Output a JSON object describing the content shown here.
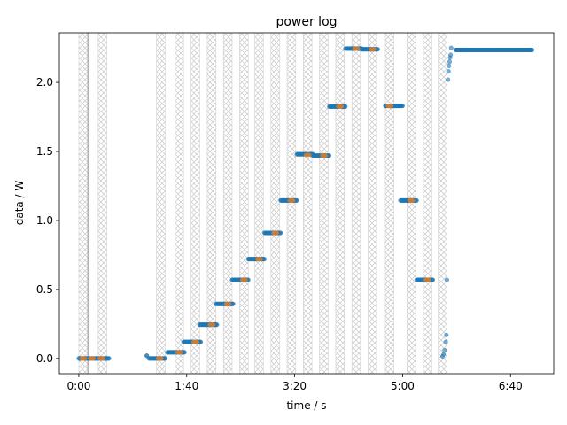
{
  "chart_data": {
    "type": "scatter",
    "title": "power log",
    "xlabel": "time / s",
    "ylabel": "data / W",
    "xlim": [
      -18,
      440
    ],
    "ylim": [
      -0.11,
      2.36
    ],
    "x_ticks": [
      {
        "value": 0,
        "label": "0:00"
      },
      {
        "value": 100,
        "label": "1:40"
      },
      {
        "value": 200,
        "label": "3:20"
      },
      {
        "value": 300,
        "label": "5:00"
      },
      {
        "value": 400,
        "label": "6:40"
      }
    ],
    "y_ticks": [
      {
        "value": 0.0,
        "label": "0.0"
      },
      {
        "value": 0.5,
        "label": "0.5"
      },
      {
        "value": 1.0,
        "label": "1.0"
      },
      {
        "value": 1.5,
        "label": "1.5"
      },
      {
        "value": 2.0,
        "label": "2.0"
      }
    ],
    "grid": false,
    "colors": {
      "measured": "#1f77b4",
      "average": "#ff7f0e",
      "hatch": "#c8c8c8"
    },
    "shaded_intervals": [
      [
        0,
        8
      ],
      [
        18,
        26
      ],
      [
        72,
        80
      ],
      [
        89,
        97
      ],
      [
        104,
        112
      ],
      [
        119,
        127
      ],
      [
        134,
        142
      ],
      [
        149,
        157
      ],
      [
        163,
        171
      ],
      [
        178,
        186
      ],
      [
        193,
        201
      ],
      [
        208,
        216
      ],
      [
        223,
        231
      ],
      [
        238,
        246
      ],
      [
        253,
        261
      ],
      [
        268,
        276
      ],
      [
        284,
        292
      ],
      [
        304,
        312
      ],
      [
        319,
        327
      ],
      [
        333,
        341
      ]
    ],
    "vertical_lines": [
      8.5
    ],
    "steps": [
      {
        "x0": 0,
        "x1": 28,
        "y": 0.0
      },
      {
        "x0": 63,
        "x1": 63,
        "y": 0.02
      },
      {
        "x0": 65,
        "x1": 80,
        "y": 0.0
      },
      {
        "x0": 82,
        "x1": 98,
        "y": 0.045
      },
      {
        "x0": 97,
        "x1": 113,
        "y": 0.12
      },
      {
        "x0": 112,
        "x1": 128,
        "y": 0.245
      },
      {
        "x0": 127,
        "x1": 143,
        "y": 0.395
      },
      {
        "x0": 142,
        "x1": 157,
        "y": 0.57
      },
      {
        "x0": 157,
        "x1": 172,
        "y": 0.72
      },
      {
        "x0": 172,
        "x1": 187,
        "y": 0.91
      },
      {
        "x0": 187,
        "x1": 202,
        "y": 1.145
      },
      {
        "x0": 202,
        "x1": 217,
        "y": 1.48
      },
      {
        "x0": 217,
        "x1": 232,
        "y": 1.47
      },
      {
        "x0": 232,
        "x1": 247,
        "y": 1.825
      },
      {
        "x0": 247,
        "x1": 262,
        "y": 2.245
      },
      {
        "x0": 262,
        "x1": 277,
        "y": 2.24
      },
      {
        "x0": 284,
        "x1": 300,
        "y": 1.83
      },
      {
        "x0": 298,
        "x1": 313,
        "y": 1.145
      },
      {
        "x0": 313,
        "x1": 328,
        "y": 0.57
      },
      {
        "x0": 349,
        "x1": 420,
        "y": 2.235
      }
    ],
    "averages": [
      {
        "x": 4,
        "y": 0.0
      },
      {
        "x": 12,
        "y": 0.0
      },
      {
        "x": 21,
        "y": 0.0
      },
      {
        "x": 75,
        "y": 0.0
      },
      {
        "x": 93,
        "y": 0.045
      },
      {
        "x": 108,
        "y": 0.12
      },
      {
        "x": 123,
        "y": 0.245
      },
      {
        "x": 138,
        "y": 0.395
      },
      {
        "x": 153,
        "y": 0.57
      },
      {
        "x": 167,
        "y": 0.72
      },
      {
        "x": 182,
        "y": 0.91
      },
      {
        "x": 197,
        "y": 1.145
      },
      {
        "x": 212,
        "y": 1.475
      },
      {
        "x": 227,
        "y": 1.47
      },
      {
        "x": 242,
        "y": 1.825
      },
      {
        "x": 257,
        "y": 2.245
      },
      {
        "x": 272,
        "y": 2.24
      },
      {
        "x": 288,
        "y": 1.83
      },
      {
        "x": 308,
        "y": 1.145
      },
      {
        "x": 323,
        "y": 0.57
      }
    ],
    "transient_points": [
      {
        "x": 337,
        "y": 0.015
      },
      {
        "x": 338,
        "y": 0.03
      },
      {
        "x": 339,
        "y": 0.06
      },
      {
        "x": 340,
        "y": 0.12
      },
      {
        "x": 340.5,
        "y": 0.17
      },
      {
        "x": 341,
        "y": 0.57
      },
      {
        "x": 342,
        "y": 2.02
      },
      {
        "x": 342.5,
        "y": 2.08
      },
      {
        "x": 343,
        "y": 2.12
      },
      {
        "x": 343.5,
        "y": 2.15
      },
      {
        "x": 344,
        "y": 2.18
      },
      {
        "x": 344.5,
        "y": 2.2
      },
      {
        "x": 345,
        "y": 2.25
      }
    ]
  }
}
